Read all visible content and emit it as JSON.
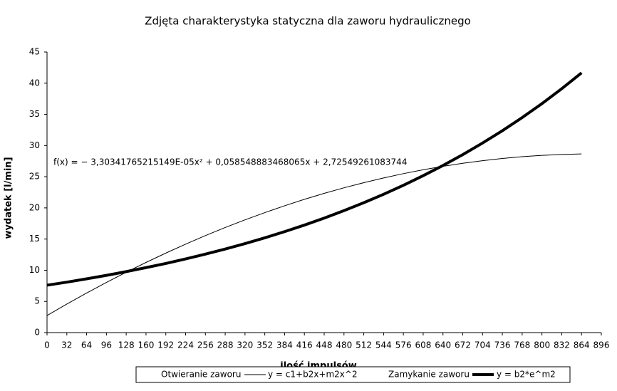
{
  "chart_data": {
    "type": "line",
    "title": "Zdjęta charakterystyka statyczna dla zaworu hydraulicznego",
    "x_label": "ilość impulsów",
    "y_label": "wydatek [l/min]",
    "annotation": "f(x) = − 3,30341765215149E-05x² + 0,058548883468065x + 2,72549261083744",
    "x": [
      0,
      32,
      64,
      96,
      128,
      160,
      192,
      224,
      256,
      288,
      320,
      352,
      384,
      416,
      448,
      480,
      512,
      544,
      576,
      608,
      640,
      672,
      704,
      736,
      768,
      800,
      832,
      864
    ],
    "series": [
      {
        "name": "Otwieranie zaworu",
        "trendline": "y = c1+b2x+m2x^2",
        "color": "#000000",
        "line_width": 1,
        "values": [
          2.73,
          4.57,
          6.34,
          8.04,
          9.68,
          11.25,
          12.75,
          14.18,
          15.55,
          16.85,
          18.08,
          19.24,
          20.34,
          21.37,
          22.33,
          23.22,
          24.04,
          24.8,
          25.49,
          26.11,
          26.67,
          27.15,
          27.57,
          27.92,
          28.21,
          28.42,
          28.57,
          28.65
        ]
      },
      {
        "name": "Zamykanie zaworu",
        "trendline": "y = b2*e^m2",
        "color": "#000000",
        "line_width": 4,
        "values": [
          7.6,
          8.09,
          8.62,
          9.18,
          9.78,
          10.42,
          11.09,
          11.81,
          12.58,
          13.4,
          14.27,
          15.2,
          16.19,
          17.24,
          18.36,
          19.56,
          20.83,
          22.18,
          23.62,
          25.16,
          26.8,
          28.54,
          30.4,
          32.37,
          34.48,
          36.72,
          39.11,
          41.65
        ]
      }
    ],
    "xlim": [
      0,
      896
    ],
    "xticks": [
      0,
      32,
      64,
      96,
      128,
      160,
      192,
      224,
      256,
      288,
      320,
      352,
      384,
      416,
      448,
      480,
      512,
      544,
      576,
      608,
      640,
      672,
      704,
      736,
      768,
      800,
      832,
      864,
      896
    ],
    "ylim": [
      0,
      45
    ],
    "yticks": [
      0,
      5,
      10,
      15,
      20,
      25,
      30,
      35,
      40,
      45
    ],
    "grid": false,
    "legend": "bottom"
  }
}
